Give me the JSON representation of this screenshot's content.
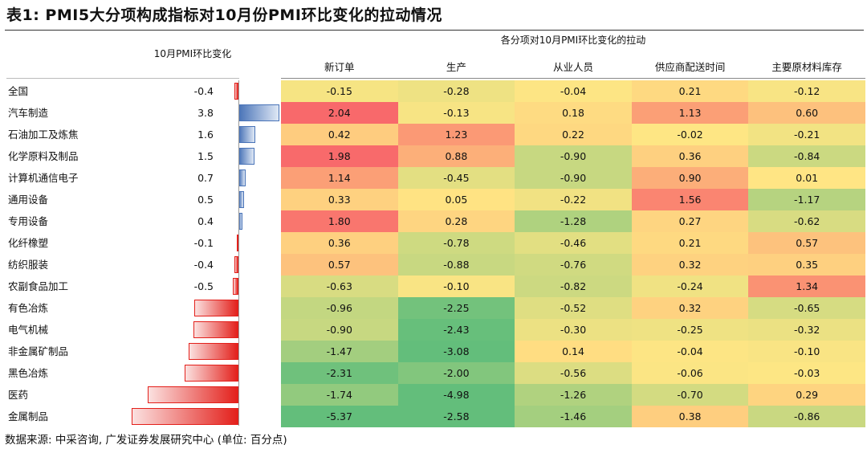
{
  "title": "表1:  PMI5大分项构成指标对10月份PMI环比变化的拉动情况",
  "pmi_header": "10月PMI环比变化",
  "group_header": "各分项对10月PMI环比变化的拉动",
  "columns": [
    "新订单",
    "生产",
    "从业人员",
    "供应商配送时间",
    "主要原材料库存"
  ],
  "rows": [
    {
      "name": "全国",
      "pmi": "-0.4",
      "vals": [
        "-0.15",
        "-0.28",
        "-0.04",
        "0.21",
        "-0.12"
      ]
    },
    {
      "name": "汽车制造",
      "pmi": "3.8",
      "vals": [
        "2.04",
        "-0.13",
        "0.18",
        "1.13",
        "0.60"
      ]
    },
    {
      "name": "石油加工及炼焦",
      "pmi": "1.6",
      "vals": [
        "0.42",
        "1.23",
        "0.22",
        "-0.02",
        "-0.21"
      ]
    },
    {
      "name": "化学原料及制品",
      "pmi": "1.5",
      "vals": [
        "1.98",
        "0.88",
        "-0.90",
        "0.36",
        "-0.84"
      ]
    },
    {
      "name": "计算机通信电子",
      "pmi": "0.7",
      "vals": [
        "1.14",
        "-0.45",
        "-0.90",
        "0.90",
        "0.01"
      ]
    },
    {
      "name": "通用设备",
      "pmi": "0.5",
      "vals": [
        "0.33",
        "0.05",
        "-0.22",
        "1.56",
        "-1.17"
      ]
    },
    {
      "name": "专用设备",
      "pmi": "0.4",
      "vals": [
        "1.80",
        "0.28",
        "-1.28",
        "0.27",
        "-0.62"
      ]
    },
    {
      "name": "化纤橡塑",
      "pmi": "-0.1",
      "vals": [
        "0.36",
        "-0.78",
        "-0.46",
        "0.21",
        "0.57"
      ]
    },
    {
      "name": "纺织服装",
      "pmi": "-0.4",
      "vals": [
        "0.57",
        "-0.88",
        "-0.76",
        "0.32",
        "0.35"
      ]
    },
    {
      "name": "农副食品加工",
      "pmi": "-0.5",
      "vals": [
        "-0.63",
        "-0.10",
        "-0.82",
        "-0.24",
        "1.34"
      ]
    },
    {
      "name": "有色冶炼",
      "pmi": "-4.1",
      "vals": [
        "-0.96",
        "-2.25",
        "-0.52",
        "0.32",
        "-0.65"
      ]
    },
    {
      "name": "电气机械",
      "pmi": "-4.2",
      "vals": [
        "-0.90",
        "-2.43",
        "-0.30",
        "-0.25",
        "-0.32"
      ]
    },
    {
      "name": "非金属矿制品",
      "pmi": "-4.6",
      "vals": [
        "-1.47",
        "-3.08",
        "0.14",
        "-0.04",
        "-0.10"
      ]
    },
    {
      "name": "黑色冶炼",
      "pmi": "-5.0",
      "vals": [
        "-2.31",
        "-2.00",
        "-0.56",
        "-0.06",
        "-0.03"
      ]
    },
    {
      "name": "医药",
      "pmi": "-8.4",
      "vals": [
        "-1.74",
        "-4.98",
        "-1.26",
        "-0.70",
        "0.29"
      ]
    },
    {
      "name": "金属制品",
      "pmi": "-9.9",
      "vals": [
        "-5.37",
        "-2.58",
        "-1.46",
        "0.38",
        "-0.86"
      ]
    }
  ],
  "footer": "数据来源: 中采咨询, 广发证券发展研究中心 (单位: 百分点)",
  "colors": {
    "positive_bar": "#4a74b8",
    "negative_bar": "#e3201b"
  }
}
